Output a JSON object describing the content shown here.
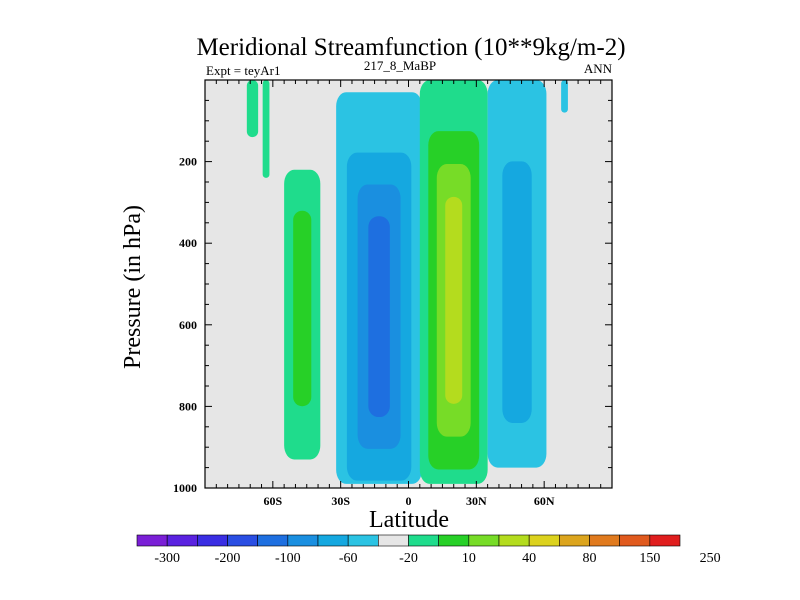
{
  "chart_data": {
    "type": "contour",
    "title": "Meridional Streamfunction (10**9kg/m-2)",
    "left_label": "Expt = teyAr1",
    "center_label": "217_8_MaBP",
    "right_label": "ANN",
    "xlabel": "Latitude",
    "ylabel": "Pressure (in hPa)",
    "xlim": [
      -90,
      90
    ],
    "ylim": [
      1000,
      0
    ],
    "xticks": [
      {
        "value": -60,
        "label": "60S"
      },
      {
        "value": -30,
        "label": "30S"
      },
      {
        "value": 0,
        "label": "0"
      },
      {
        "value": 30,
        "label": "30N"
      },
      {
        "value": 60,
        "label": "60N"
      }
    ],
    "yticks": [
      {
        "value": 200,
        "label": "200"
      },
      {
        "value": 400,
        "label": "400"
      },
      {
        "value": 600,
        "label": "600"
      },
      {
        "value": 800,
        "label": "800"
      },
      {
        "value": 1000,
        "label": "1000"
      }
    ],
    "background_color": "#e6e6e6",
    "colorbar": {
      "colors": [
        "#7a1fd6",
        "#5a22e0",
        "#3a2ee3",
        "#2a4ee3",
        "#1e6fe0",
        "#1a8fe0",
        "#15a8e0",
        "#2bc3e3",
        "#e6e6e6",
        "#1fdc8c",
        "#27d027",
        "#77dc27",
        "#b4dc1e",
        "#dcd21e",
        "#dca51e",
        "#e07a1e",
        "#e05a1e",
        "#e01e1e"
      ],
      "labels": [
        "-300",
        "-200",
        "-100",
        "-60",
        "-20",
        "10",
        "40",
        "80",
        "150",
        "250"
      ]
    },
    "cells": [
      {
        "name": "sh-polar-thin",
        "center_lat": -69,
        "center_p": 60,
        "width_deg": 5,
        "top_p": 0,
        "bottom_p": 140,
        "color_levels": [
          "#1fdc8c"
        ]
      },
      {
        "name": "sh-polar-wisp",
        "center_lat": -63,
        "center_p": 110,
        "width_deg": 3,
        "top_p": 0,
        "bottom_p": 240,
        "color_levels": [
          "#1fdc8c"
        ]
      },
      {
        "name": "sh-ferrel",
        "center_lat": -47,
        "center_p": 560,
        "width_deg": 16,
        "top_p": 220,
        "bottom_p": 930,
        "color_levels": [
          "#1fdc8c",
          "#27d027"
        ]
      },
      {
        "name": "sh-hadley",
        "center_lat": -13,
        "center_p": 580,
        "width_deg": 38,
        "top_p": 30,
        "bottom_p": 990,
        "color_levels": [
          "#2bc3e3",
          "#15a8e0",
          "#1a8fe0",
          "#1e6fe0"
        ]
      },
      {
        "name": "nh-hadley",
        "center_lat": 20,
        "center_p": 540,
        "width_deg": 30,
        "top_p": 0,
        "bottom_p": 990,
        "color_levels": [
          "#1fdc8c",
          "#27d027",
          "#77dc27",
          "#b4dc1e"
        ]
      },
      {
        "name": "nh-ferrel",
        "center_lat": 48,
        "center_p": 520,
        "width_deg": 26,
        "top_p": 0,
        "bottom_p": 950,
        "color_levels": [
          "#2bc3e3",
          "#15a8e0"
        ]
      },
      {
        "name": "nh-polar",
        "center_lat": 69,
        "center_p": 40,
        "width_deg": 3,
        "top_p": 0,
        "bottom_p": 80,
        "color_levels": [
          "#2bc3e3"
        ]
      }
    ]
  }
}
